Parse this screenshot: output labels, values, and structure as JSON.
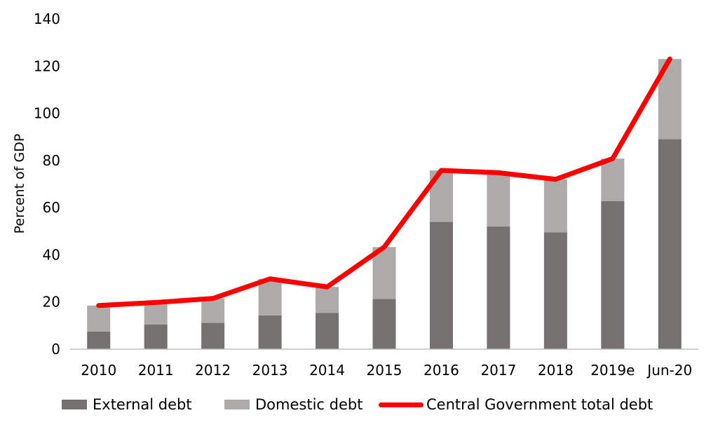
{
  "chart_data": {
    "type": "bar",
    "stacked": true,
    "categories": [
      "2010",
      "2011",
      "2012",
      "2013",
      "2014",
      "2015",
      "2016",
      "2017",
      "2018",
      "2019e",
      "Jun-20"
    ],
    "series": [
      {
        "name": "External debt",
        "kind": "bar",
        "color": "#767171",
        "values": [
          7.5,
          10.5,
          11.2,
          14.3,
          15.4,
          21.3,
          54.0,
          52.0,
          49.5,
          62.8,
          89.0
        ]
      },
      {
        "name": "Domestic debt",
        "kind": "bar",
        "color": "#AEAAAA",
        "values": [
          11.0,
          9.3,
          10.3,
          15.5,
          11.0,
          22.0,
          21.8,
          22.8,
          22.5,
          18.0,
          34.0
        ]
      },
      {
        "name": "Central Government total debt",
        "kind": "line",
        "color": "#FF0000",
        "values": [
          18.5,
          19.8,
          21.5,
          29.8,
          26.4,
          43.3,
          75.8,
          74.8,
          72.0,
          80.8,
          123.0
        ]
      }
    ],
    "ylabel": "Percent of GDP",
    "xlabel": "",
    "ylim": [
      0,
      140
    ],
    "yticks": [
      0,
      20,
      40,
      60,
      80,
      100,
      120,
      140
    ],
    "grid": false,
    "legend_position": "bottom"
  }
}
